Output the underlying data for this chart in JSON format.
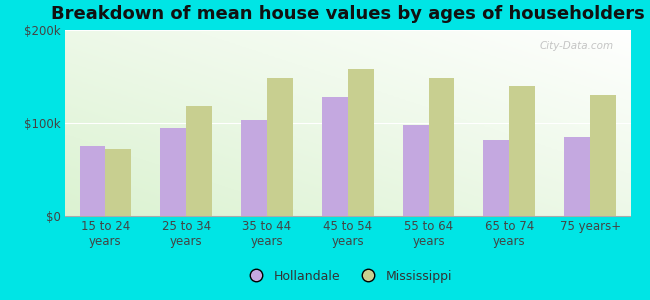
{
  "title": "Breakdown of mean house values by ages of householders",
  "categories": [
    "15 to 24\nyears",
    "25 to 34\nyears",
    "35 to 44\nyears",
    "45 to 54\nyears",
    "55 to 64\nyears",
    "65 to 74\nyears",
    "75 years+"
  ],
  "hollandale": [
    75000,
    95000,
    103000,
    128000,
    98000,
    82000,
    85000
  ],
  "mississippi": [
    72000,
    118000,
    148000,
    158000,
    148000,
    140000,
    130000
  ],
  "hollandale_color": "#c4a8e0",
  "mississippi_color": "#c8cf90",
  "figure_bg_color": "#00e5e5",
  "ylim": [
    0,
    200000
  ],
  "yticks": [
    0,
    100000,
    200000
  ],
  "ytick_labels": [
    "$0",
    "$100k",
    "$200k"
  ],
  "legend_hollandale": "Hollandale",
  "legend_mississippi": "Mississippi",
  "bar_width": 0.32,
  "title_fontsize": 13,
  "tick_fontsize": 8.5,
  "legend_fontsize": 9,
  "watermark": "City-Data.com"
}
